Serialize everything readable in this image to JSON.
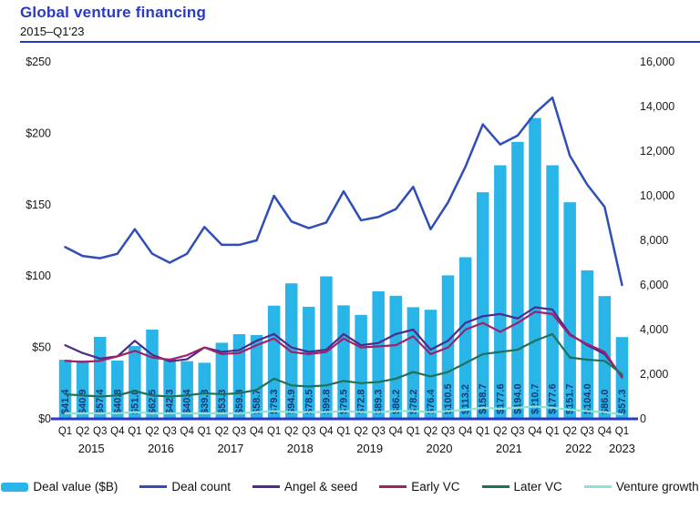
{
  "header": {
    "title": "Global venture financing",
    "subtitle": "2015–Q1'23"
  },
  "chart_data": {
    "type": "bar",
    "subtype": "combo-bar-line-dual-axis",
    "grid": false,
    "legend_position": "bottom",
    "accent_color": "#2A3AC2",
    "axis_line_color": "#2A3AC2",
    "x_axis": {
      "quarter_sequence": [
        "Q1",
        "Q2",
        "Q3",
        "Q4"
      ],
      "years": [
        {
          "label": "2015",
          "quarters": 4
        },
        {
          "label": "2016",
          "quarters": 4
        },
        {
          "label": "2017",
          "quarters": 4
        },
        {
          "label": "2018",
          "quarters": 4
        },
        {
          "label": "2019",
          "quarters": 4
        },
        {
          "label": "2020",
          "quarters": 4
        },
        {
          "label": "2021",
          "quarters": 4
        },
        {
          "label": "2022",
          "quarters": 4
        },
        {
          "label": "2023",
          "quarters": 1
        }
      ]
    },
    "left_axis": {
      "min": 0,
      "max": 250,
      "step": 50,
      "tick_labels": [
        "$0",
        "$50",
        "$100",
        "$150",
        "$200",
        "$250"
      ]
    },
    "right_axis": {
      "min": 0,
      "max": 16000,
      "step": 2000,
      "tick_labels": [
        "0",
        "2,000",
        "4,000",
        "6,000",
        "8,000",
        "10,000",
        "12,000",
        "14,000",
        "16,000"
      ]
    },
    "series": [
      {
        "name": "Deal value ($B)",
        "type": "bar",
        "axis": "left",
        "color": "#29B5E8",
        "label_prefix": "$",
        "label_decimals": 1,
        "values": [
          41.4,
          40.9,
          57.4,
          40.8,
          51.0,
          62.5,
          42.3,
          40.4,
          39.3,
          53.3,
          59.3,
          58.7,
          79.3,
          94.9,
          78.5,
          99.8,
          79.5,
          72.8,
          89.3,
          86.2,
          78.2,
          76.4,
          100.5,
          113.2,
          158.7,
          177.6,
          194.0,
          210.7,
          177.6,
          151.7,
          104.0,
          86.0,
          57.3
        ]
      },
      {
        "name": "Deal count",
        "type": "line",
        "axis": "right",
        "color": "#2F4EB8",
        "width": 2.5,
        "values": [
          7700,
          7300,
          7200,
          7400,
          8500,
          7400,
          7000,
          7400,
          8600,
          7800,
          7800,
          8000,
          10000,
          8850,
          8550,
          8800,
          10200,
          8900,
          9050,
          9400,
          10400,
          8500,
          9700,
          11300,
          13200,
          12300,
          12700,
          13700,
          14400,
          11800,
          10500,
          9500,
          6000
        ]
      },
      {
        "name": "Angel & seed",
        "type": "line",
        "axis": "right",
        "color": "#4D2A8C",
        "width": 2.2,
        "values": [
          3300,
          2950,
          2700,
          2800,
          3500,
          2870,
          2580,
          2670,
          3200,
          3000,
          3080,
          3500,
          3800,
          3200,
          3000,
          3100,
          3800,
          3300,
          3400,
          3800,
          4000,
          3100,
          3500,
          4300,
          4600,
          4700,
          4500,
          5000,
          4900,
          3800,
          3300,
          2900,
          1900
        ]
      },
      {
        "name": "Early VC",
        "type": "line",
        "axis": "right",
        "color": "#A12069",
        "width": 2.2,
        "values": [
          2600,
          2550,
          2600,
          2800,
          3050,
          2750,
          2650,
          2850,
          3200,
          2900,
          2950,
          3300,
          3600,
          3000,
          2900,
          3000,
          3600,
          3200,
          3250,
          3300,
          3700,
          2900,
          3200,
          4000,
          4300,
          3900,
          4300,
          4800,
          4700,
          3750,
          3350,
          3000,
          1850
        ]
      },
      {
        "name": "Later VC",
        "type": "line",
        "axis": "right",
        "color": "#20705A",
        "width": 2.2,
        "values": [
          1100,
          1050,
          1000,
          1050,
          1250,
          1050,
          1000,
          1050,
          1150,
          1100,
          1150,
          1300,
          1800,
          1500,
          1450,
          1500,
          1700,
          1600,
          1650,
          1800,
          2100,
          1900,
          2100,
          2500,
          2900,
          3000,
          3100,
          3500,
          3800,
          2750,
          2650,
          2600,
          2000
        ]
      },
      {
        "name": "Venture growth",
        "type": "line",
        "axis": "right",
        "color": "#90E0D5",
        "width": 2.2,
        "values": [
          250,
          250,
          250,
          250,
          300,
          250,
          250,
          250,
          250,
          250,
          250,
          300,
          350,
          300,
          300,
          300,
          350,
          300,
          300,
          350,
          350,
          300,
          350,
          400,
          500,
          450,
          500,
          550,
          500,
          400,
          350,
          300,
          200
        ]
      }
    ]
  }
}
